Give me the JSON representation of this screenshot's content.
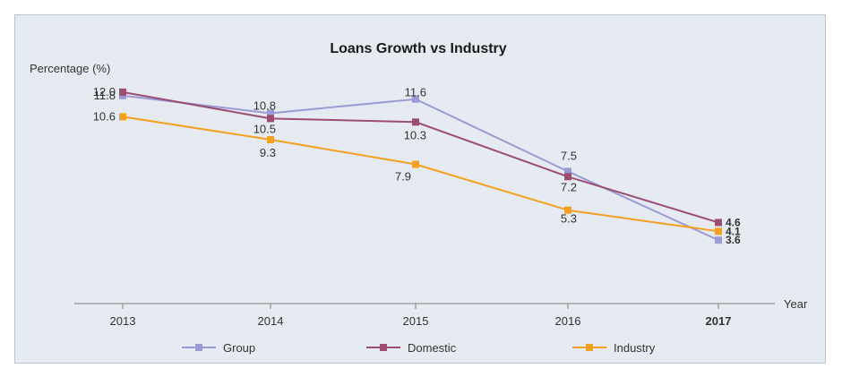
{
  "chart_data": {
    "type": "line",
    "title": "Loans Growth vs Industry",
    "ylabel": "Percentage (%)",
    "xlabel": "Year",
    "categories": [
      "2013",
      "2014",
      "2015",
      "2016",
      "2017"
    ],
    "highlight_category": "2017",
    "ylim": [
      0,
      12.5
    ],
    "grid": false,
    "legend": "bottom",
    "series": [
      {
        "name": "Group",
        "color": "#9a9ad6",
        "values": [
          11.8,
          10.8,
          11.6,
          7.5,
          3.6
        ],
        "labels": [
          "11.8",
          "10.8",
          "11.6",
          "7.5",
          "3.6"
        ]
      },
      {
        "name": "Domestic",
        "color": "#9b4d72",
        "values": [
          12.0,
          10.5,
          10.3,
          7.2,
          4.6
        ],
        "labels": [
          "12.0",
          "10.5",
          "10.3",
          "7.2",
          "4.6"
        ]
      },
      {
        "name": "Industry",
        "color": "#f5a020",
        "values": [
          10.6,
          9.3,
          7.9,
          5.3,
          4.1
        ],
        "labels": [
          "10.6",
          "9.3",
          "7.9",
          "5.3",
          "4.1"
        ]
      }
    ]
  }
}
